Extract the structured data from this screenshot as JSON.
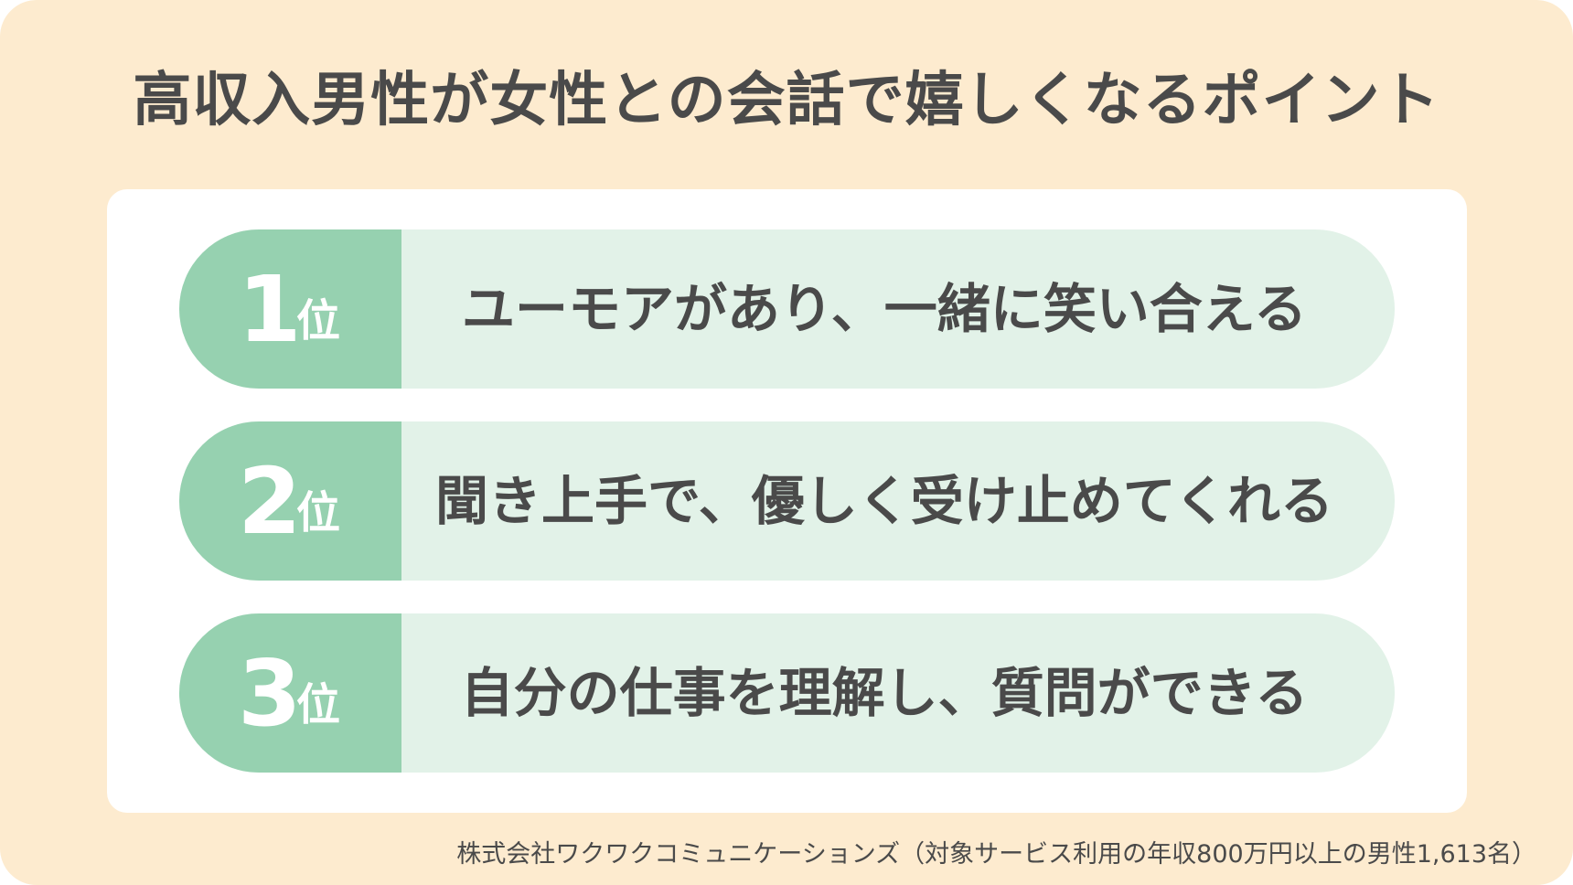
{
  "title": "高収入男性が女性との会話で嬉しくなるポイント",
  "rank_unit": "位",
  "items": [
    {
      "rank": "1",
      "text": "ユーモアがあり、一緒に笑い合える"
    },
    {
      "rank": "2",
      "text": "聞き上手で、優しく受け止めてくれる"
    },
    {
      "rank": "3",
      "text": "自分の仕事を理解し、質問ができる"
    }
  ],
  "footer": "株式会社ワクワクコミュニケーションズ（対象サービス利用の年収800万円以上の男性1,613名）",
  "colors": {
    "background": "#fdebcf",
    "rank_green": "#96d1b0",
    "row_light_green": "#e2f2e8",
    "text": "#4a4a4a"
  }
}
